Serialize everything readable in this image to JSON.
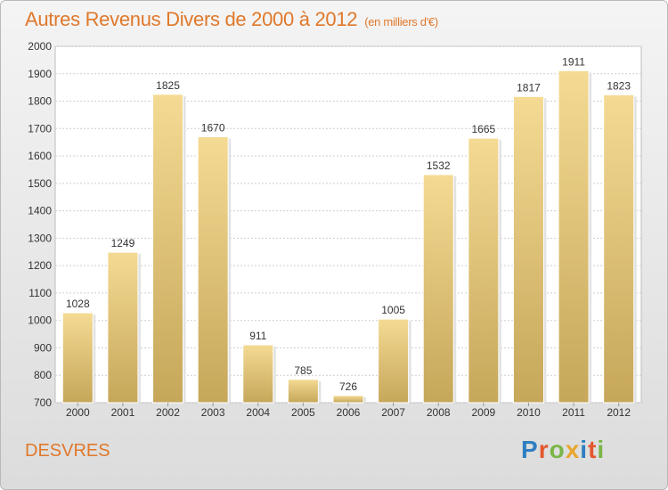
{
  "chart_data": {
    "type": "bar",
    "title": "Autres Revenus Divers de 2000 à 2012",
    "subtitle": "(en milliers d'€)",
    "categories": [
      "2000",
      "2001",
      "2002",
      "2003",
      "2004",
      "2005",
      "2006",
      "2007",
      "2008",
      "2009",
      "2010",
      "2011",
      "2012"
    ],
    "values": [
      1028,
      1249,
      1825,
      1670,
      911,
      785,
      726,
      1005,
      1532,
      1665,
      1817,
      1911,
      1823
    ],
    "ylim": [
      700,
      2000
    ],
    "yticks": [
      700,
      800,
      900,
      1000,
      1100,
      1200,
      1300,
      1400,
      1500,
      1600,
      1700,
      1800,
      1900,
      2000
    ],
    "grid": true,
    "bar_color_top": "#f4da93",
    "bar_color_bottom": "#c6a75a"
  },
  "footer": {
    "commune": "DESVRES",
    "logo_letters": [
      {
        "ch": "P",
        "color": "#2f7fc1"
      },
      {
        "ch": "r",
        "color": "#e3572f"
      },
      {
        "ch": "o",
        "color": "#7ab648"
      },
      {
        "ch": "x",
        "color": "#e9a62d"
      },
      {
        "ch": "i",
        "color": "#2f7fc1"
      },
      {
        "ch": "t",
        "color": "#e3572f"
      },
      {
        "ch": "i",
        "color": "#7ab648"
      }
    ]
  },
  "colors": {
    "title": "#e0782a",
    "accent": "#e0782a"
  }
}
